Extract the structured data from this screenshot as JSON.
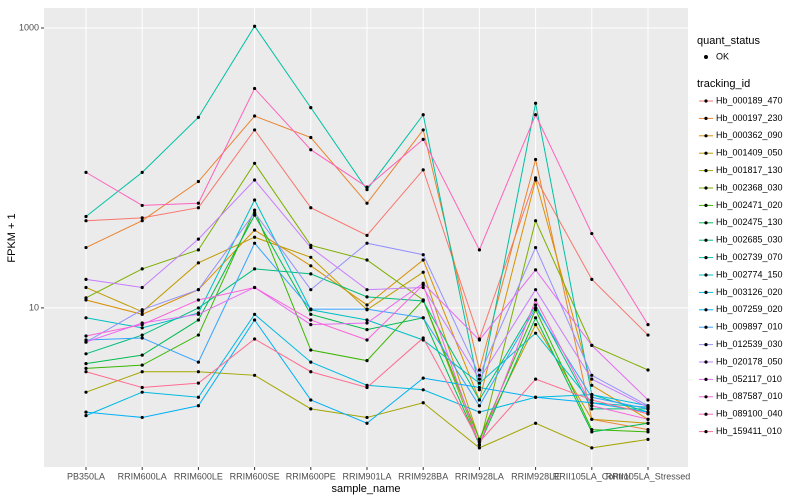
{
  "chart_data": {
    "type": "line",
    "x_label": "sample_name",
    "y_label": "FPKM + 1",
    "log_y": true,
    "grid": true,
    "categories": [
      "PB350LA",
      "RRIM600LA",
      "RRIM600LE",
      "RRIM600SE",
      "RRIM600PE",
      "RRIM901LA",
      "RRIM928BA",
      "RRIM928LA",
      "RRIM928LE",
      "RRII105LA_Control",
      "RRII105LA_Stressed"
    ],
    "ylim": [
      0.73,
      1390
    ],
    "yticks": [
      10,
      1000
    ],
    "point_legend_title": "quant_status",
    "point_legend_label": "OK",
    "legend_title": "tracking_id",
    "series": [
      {
        "name": "Hb_000189_470",
        "color": "#F8766D",
        "values": [
          42,
          44,
          52,
          187,
          52,
          33,
          97,
          6,
          85,
          16,
          6.4
        ]
      },
      {
        "name": "Hb_000197_230",
        "color": "#EA8331",
        "values": [
          27,
          42,
          80,
          235,
          165,
          56,
          187,
          3.6,
          115,
          1.6,
          1.35
        ]
      },
      {
        "name": "Hb_000362_090",
        "color": "#D89000",
        "values": [
          11.4,
          9,
          13.5,
          36,
          20,
          10.5,
          22,
          2.2,
          82,
          2.8,
          1.6
        ]
      },
      {
        "name": "Hb_001409_050",
        "color": "#C09B00",
        "values": [
          14,
          9.4,
          21,
          32,
          23,
          9.7,
          18,
          1.15,
          7.6,
          1.6,
          1.5
        ]
      },
      {
        "name": "Hb_001817_130",
        "color": "#A3A500",
        "values": [
          2.5,
          3.5,
          3.5,
          3.3,
          1.9,
          1.65,
          2.1,
          1.0,
          1.5,
          1.0,
          1.15
        ]
      },
      {
        "name": "Hb_002368_030",
        "color": "#7CAE00",
        "values": [
          11.8,
          19,
          26,
          108,
          28,
          22,
          11.4,
          1.05,
          42,
          5.4,
          3.6
        ]
      },
      {
        "name": "Hb_002471_020",
        "color": "#39B600",
        "values": [
          3.7,
          3.9,
          6.4,
          50,
          5,
          4.2,
          11.4,
          1.15,
          9.7,
          1.35,
          1.3
        ]
      },
      {
        "name": "Hb_002475_130",
        "color": "#00BB4E",
        "values": [
          4.0,
          4.6,
          8.2,
          46,
          9,
          7,
          8.5,
          1.05,
          8.5,
          1.3,
          1.5
        ]
      },
      {
        "name": "Hb_002685_030",
        "color": "#00BF7D",
        "values": [
          4.7,
          6.4,
          10,
          19,
          17.5,
          12,
          11.2,
          2.2,
          10.5,
          1.9,
          1.9
        ]
      },
      {
        "name": "Hb_002739_070",
        "color": "#00C1A3",
        "values": [
          45,
          93,
          230,
          1030,
          270,
          70,
          240,
          2.6,
          290,
          2.4,
          1.8
        ]
      },
      {
        "name": "Hb_002774_150",
        "color": "#00BFC4",
        "values": [
          8.5,
          7.2,
          9.2,
          59,
          9.7,
          8.2,
          5.9,
          2.9,
          6.6,
          2.1,
          1.95
        ]
      },
      {
        "name": "Hb_003126_020",
        "color": "#00BAE0",
        "values": [
          1.7,
          2.5,
          2.3,
          9,
          4.1,
          2.8,
          2.6,
          1.8,
          2.3,
          2.4,
          2
        ]
      },
      {
        "name": "Hb_007259_020",
        "color": "#00B0F6",
        "values": [
          1.8,
          1.65,
          2,
          8.2,
          2.2,
          1.5,
          3.15,
          2.7,
          2.3,
          2.1,
          1.8
        ]
      },
      {
        "name": "Hb_009897_010",
        "color": "#35A2FF",
        "values": [
          5.9,
          6.1,
          4.1,
          29,
          9.8,
          9.8,
          8.5,
          2,
          10,
          2.3,
          1.9
        ]
      },
      {
        "name": "Hb_012539_030",
        "color": "#9590FF",
        "values": [
          5.7,
          9.7,
          13.5,
          48,
          13.5,
          29,
          24,
          3.3,
          27,
          3.3,
          2
        ]
      },
      {
        "name": "Hb_020178_050",
        "color": "#C77CFF",
        "values": [
          16,
          14,
          31,
          82,
          27,
          13.5,
          14,
          3.1,
          13.5,
          3.1,
          1.95
        ]
      },
      {
        "name": "Hb_052117_010",
        "color": "#E76BF3",
        "values": [
          5.7,
          7.8,
          9,
          14,
          7.6,
          7.8,
          15,
          5.9,
          18.7,
          5.4,
          2.2
        ]
      },
      {
        "name": "Hb_087587_010",
        "color": "#FA62DB",
        "values": [
          6.3,
          7.6,
          11.4,
          14,
          8.2,
          5.9,
          14.6,
          1.05,
          11.4,
          2,
          1.6
        ]
      },
      {
        "name": "Hb_089100_040",
        "color": "#FF62BC",
        "values": [
          93,
          54,
          56,
          370,
          135,
          73,
          160,
          26,
          240,
          34,
          7.6
        ]
      },
      {
        "name": "Hb_159411_010",
        "color": "#FF6C91",
        "values": [
          3.5,
          2.7,
          2.9,
          6,
          3.5,
          2.7,
          6.1,
          1.1,
          3.1,
          2.2,
          1.75
        ]
      }
    ]
  }
}
